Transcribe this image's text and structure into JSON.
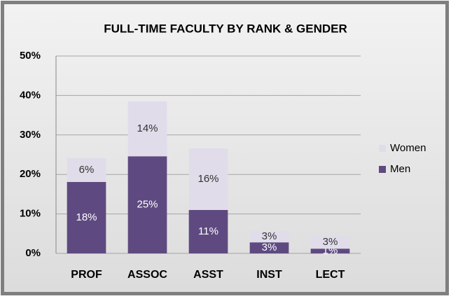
{
  "chart_data": {
    "type": "stacked_bar",
    "title": "FULL-TIME FACULTY BY RANK & GENDER",
    "categories": [
      "PROF",
      "ASSOC",
      "ASST",
      "INST",
      "LECT"
    ],
    "series": [
      {
        "name": "Men",
        "color": "#5e4a80",
        "values": [
          18.1,
          24.6,
          11.0,
          2.8,
          1.2
        ],
        "value_labels": [
          "18%",
          "25%",
          "11%",
          "3%",
          "1%"
        ]
      },
      {
        "name": "Women",
        "color": "#e0dcea",
        "values": [
          6.0,
          13.9,
          15.6,
          2.9,
          3.2
        ],
        "value_labels": [
          "6%",
          "14%",
          "16%",
          "3%",
          "3%"
        ]
      }
    ],
    "ylim": [
      0,
      50
    ],
    "yticks": [
      {
        "value": 0,
        "label": "0%"
      },
      {
        "value": 10,
        "label": "10%"
      },
      {
        "value": 20,
        "label": "20%"
      },
      {
        "value": 30,
        "label": "30%"
      },
      {
        "value": 40,
        "label": "40%"
      },
      {
        "value": 50,
        "label": "50%"
      }
    ],
    "grid": true,
    "legend": "right"
  }
}
